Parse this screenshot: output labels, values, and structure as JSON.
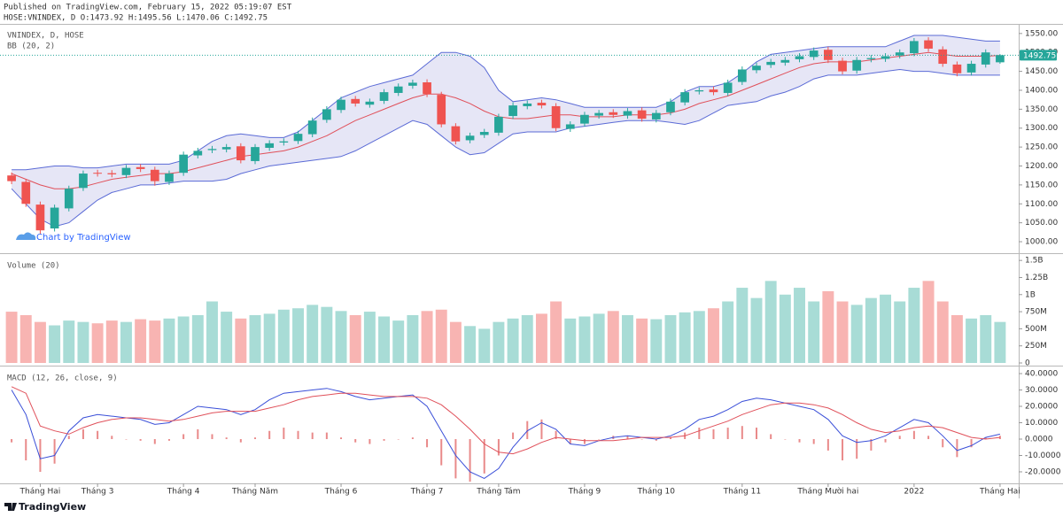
{
  "header": {
    "published": "Published on TradingView.com, February 15, 2022 05:19:07 EST",
    "ohlc": "HOSE:VNINDEX, D O:1473.92 H:1495.56 L:1470.06 C:1492.75"
  },
  "watermark": "Chart by TradingView",
  "footer": "TradingView",
  "chart_data": [
    {
      "type": "candlestick",
      "title": "VNINDEX, D, HOSE",
      "up_color": "#26a69a",
      "down_color": "#ef5350",
      "open": [
        1175,
        1158,
        1098,
        1035,
        1088,
        1142,
        1182,
        1181,
        1176,
        1197,
        1190,
        1158,
        1182,
        1228,
        1242,
        1244,
        1252,
        1213,
        1248,
        1262,
        1266,
        1284,
        1322,
        1348,
        1377,
        1362,
        1372,
        1393,
        1412,
        1421,
        1388,
        1305,
        1268,
        1282,
        1288,
        1332,
        1358,
        1367,
        1358,
        1298,
        1312,
        1333,
        1342,
        1333,
        1347,
        1323,
        1342,
        1368,
        1397,
        1402,
        1393,
        1422,
        1453,
        1467,
        1473,
        1482,
        1488,
        1507,
        1478,
        1452,
        1482,
        1483,
        1492,
        1498,
        1532,
        1508,
        1468,
        1447,
        1468,
        1473.92
      ],
      "high": [
        1183,
        1166,
        1106,
        1098,
        1148,
        1188,
        1190,
        1189,
        1203,
        1205,
        1198,
        1188,
        1238,
        1248,
        1253,
        1258,
        1260,
        1258,
        1268,
        1273,
        1293,
        1328,
        1358,
        1383,
        1385,
        1378,
        1403,
        1418,
        1428,
        1429,
        1396,
        1313,
        1288,
        1298,
        1338,
        1368,
        1373,
        1375,
        1366,
        1318,
        1343,
        1348,
        1350,
        1353,
        1355,
        1348,
        1378,
        1403,
        1408,
        1410,
        1428,
        1463,
        1473,
        1483,
        1488,
        1498,
        1513,
        1515,
        1486,
        1488,
        1493,
        1498,
        1508,
        1538,
        1540,
        1516,
        1476,
        1478,
        1508,
        1495.56
      ],
      "low": [
        1152,
        1092,
        1020,
        1027,
        1080,
        1134,
        1172,
        1170,
        1168,
        1184,
        1148,
        1150,
        1174,
        1220,
        1234,
        1236,
        1207,
        1205,
        1240,
        1254,
        1258,
        1276,
        1314,
        1340,
        1357,
        1354,
        1364,
        1385,
        1404,
        1382,
        1302,
        1257,
        1260,
        1274,
        1280,
        1324,
        1350,
        1352,
        1292,
        1290,
        1304,
        1325,
        1327,
        1325,
        1317,
        1315,
        1334,
        1360,
        1389,
        1387,
        1385,
        1414,
        1445,
        1459,
        1465,
        1474,
        1480,
        1472,
        1442,
        1444,
        1474,
        1475,
        1484,
        1490,
        1502,
        1462,
        1437,
        1439,
        1460,
        1470.06
      ],
      "close": [
        1160,
        1100,
        1030,
        1090,
        1140,
        1180,
        1180,
        1178,
        1195,
        1192,
        1160,
        1180,
        1230,
        1240,
        1245,
        1250,
        1215,
        1250,
        1260,
        1265,
        1285,
        1320,
        1350,
        1375,
        1365,
        1370,
        1395,
        1410,
        1420,
        1390,
        1310,
        1265,
        1280,
        1290,
        1330,
        1360,
        1365,
        1360,
        1300,
        1310,
        1335,
        1340,
        1335,
        1345,
        1325,
        1340,
        1370,
        1395,
        1400,
        1395,
        1420,
        1455,
        1465,
        1475,
        1480,
        1490,
        1505,
        1480,
        1450,
        1480,
        1485,
        1490,
        1500,
        1530,
        1510,
        1470,
        1445,
        1470,
        1500,
        1492.75
      ],
      "bands": {
        "name": "BB (20, 2)",
        "line_color": "#5b6bd6",
        "basis_color": "#e0505a",
        "fill": "#dcdcf2",
        "upper": [
          1190,
          1190,
          1195,
          1200,
          1200,
          1195,
          1195,
          1200,
          1205,
          1205,
          1205,
          1205,
          1215,
          1240,
          1265,
          1280,
          1285,
          1280,
          1275,
          1275,
          1290,
          1320,
          1350,
          1380,
          1395,
          1410,
          1420,
          1430,
          1440,
          1470,
          1500,
          1500,
          1490,
          1460,
          1400,
          1370,
          1375,
          1380,
          1375,
          1365,
          1355,
          1355,
          1355,
          1355,
          1355,
          1355,
          1370,
          1395,
          1410,
          1410,
          1420,
          1445,
          1475,
          1495,
          1500,
          1505,
          1510,
          1515,
          1515,
          1515,
          1515,
          1515,
          1530,
          1545,
          1545,
          1545,
          1540,
          1535,
          1530,
          1530
        ],
        "basis": [
          1180,
          1165,
          1150,
          1140,
          1140,
          1145,
          1155,
          1165,
          1170,
          1175,
          1180,
          1180,
          1185,
          1195,
          1205,
          1215,
          1225,
          1230,
          1235,
          1240,
          1250,
          1265,
          1280,
          1300,
          1320,
          1335,
          1350,
          1365,
          1380,
          1390,
          1390,
          1380,
          1365,
          1345,
          1330,
          1325,
          1325,
          1330,
          1335,
          1335,
          1330,
          1330,
          1330,
          1335,
          1335,
          1335,
          1340,
          1350,
          1365,
          1375,
          1385,
          1400,
          1415,
          1430,
          1445,
          1460,
          1470,
          1475,
          1475,
          1475,
          1480,
          1485,
          1490,
          1495,
          1500,
          1495,
          1490,
          1490,
          1490,
          1492
        ],
        "lower": [
          1140,
          1100,
          1060,
          1040,
          1050,
          1080,
          1110,
          1130,
          1140,
          1150,
          1150,
          1155,
          1160,
          1160,
          1160,
          1165,
          1180,
          1190,
          1200,
          1205,
          1210,
          1215,
          1220,
          1225,
          1240,
          1260,
          1280,
          1300,
          1320,
          1310,
          1280,
          1250,
          1230,
          1235,
          1260,
          1285,
          1290,
          1290,
          1290,
          1300,
          1305,
          1310,
          1315,
          1320,
          1320,
          1320,
          1315,
          1310,
          1320,
          1340,
          1360,
          1365,
          1370,
          1385,
          1395,
          1410,
          1430,
          1440,
          1440,
          1440,
          1445,
          1450,
          1455,
          1450,
          1450,
          1445,
          1440,
          1440,
          1440,
          1440
        ]
      },
      "last_price": 1492.75,
      "last_price_color": "#26a69a",
      "ylim": [
        972,
        1573
      ],
      "yticks": [
        {
          "value": 1550,
          "label": "1550.00"
        },
        {
          "value": 1500,
          "label": "1500.00"
        },
        {
          "value": 1450,
          "label": "1450.00"
        },
        {
          "value": 1400,
          "label": "1400.00"
        },
        {
          "value": 1350,
          "label": "1350.00"
        },
        {
          "value": 1300,
          "label": "1300.00"
        },
        {
          "value": 1250,
          "label": "1250.00"
        },
        {
          "value": 1200,
          "label": "1200.00"
        },
        {
          "value": 1150,
          "label": "1150.00"
        },
        {
          "value": 1100,
          "label": "1100.00"
        },
        {
          "value": 1050,
          "label": "1050.00"
        },
        {
          "value": 1000,
          "label": "1000.00"
        }
      ]
    },
    {
      "type": "bar",
      "title": "Volume (20)",
      "up_color": "#a8dcd6",
      "down_color": "#f8b4b2",
      "values": [
        750,
        700,
        600,
        550,
        620,
        600,
        580,
        620,
        600,
        640,
        620,
        650,
        680,
        700,
        900,
        750,
        650,
        700,
        720,
        780,
        800,
        850,
        820,
        760,
        700,
        750,
        680,
        620,
        700,
        760,
        780,
        600,
        540,
        500,
        600,
        650,
        700,
        720,
        900,
        650,
        680,
        720,
        760,
        700,
        650,
        640,
        700,
        740,
        760,
        800,
        900,
        1100,
        950,
        1200,
        1000,
        1100,
        900,
        1050,
        900,
        850,
        950,
        1000,
        900,
        1100,
        1200,
        900,
        700,
        650,
        700,
        600
      ],
      "ylim": [
        -26,
        1580
      ],
      "yticks": [
        {
          "value": 1500,
          "label": "1.5B"
        },
        {
          "value": 1250,
          "label": "1.25B"
        },
        {
          "value": 1000,
          "label": "1B"
        },
        {
          "value": 750,
          "label": "750M"
        },
        {
          "value": 500,
          "label": "500M"
        },
        {
          "value": 250,
          "label": "250M"
        },
        0
      ]
    },
    {
      "type": "macd",
      "title": "MACD (12, 26, close, 9)",
      "macd_color": "#3a4fd8",
      "signal_color": "#e0505a",
      "histogram_color": "#e98a8a",
      "categories": [
        null,
        null,
        "Tháng Hai",
        null,
        null,
        null,
        "Tháng 3",
        null,
        null,
        null,
        null,
        null,
        "Tháng 4",
        null,
        null,
        null,
        null,
        "Tháng Năm",
        null,
        null,
        null,
        null,
        null,
        "Tháng 6",
        null,
        null,
        null,
        null,
        null,
        "Tháng 7",
        null,
        null,
        null,
        null,
        "Tháng Tám",
        null,
        null,
        null,
        null,
        null,
        "Tháng 9",
        null,
        null,
        null,
        null,
        "Tháng 10",
        null,
        null,
        null,
        null,
        null,
        "Tháng 11",
        null,
        null,
        null,
        null,
        null,
        "Tháng Mười hai",
        null,
        null,
        null,
        null,
        null,
        "2022",
        null,
        null,
        null,
        null,
        null,
        "Tháng Hai"
      ],
      "macd": [
        30,
        15,
        -12,
        -10,
        5,
        13,
        15,
        14,
        13,
        12,
        9,
        10,
        15,
        20,
        19,
        18,
        15,
        18,
        24,
        28,
        29,
        30,
        31,
        29,
        26,
        24,
        25,
        26,
        27,
        20,
        5,
        -10,
        -20,
        -24,
        -18,
        -5,
        5,
        10,
        6,
        -3,
        -4,
        -1,
        1,
        2,
        1,
        0,
        2,
        6,
        12,
        14,
        18,
        23,
        25,
        24,
        22,
        20,
        18,
        12,
        2,
        -2,
        -1,
        2,
        7,
        12,
        10,
        2,
        -7,
        -4,
        1,
        3
      ],
      "signal": [
        32,
        28,
        8,
        5,
        3,
        7,
        10,
        12,
        13,
        13,
        12,
        11,
        12,
        14,
        16,
        17,
        17,
        17,
        19,
        21,
        24,
        26,
        27,
        28,
        28,
        27,
        26,
        26,
        26,
        25,
        21,
        14,
        6,
        -3,
        -8,
        -9,
        -6,
        -2,
        1,
        0,
        -1,
        -1,
        -1,
        0,
        1,
        1,
        1,
        2,
        5,
        8,
        11,
        15,
        18,
        21,
        22,
        22,
        21,
        19,
        15,
        10,
        6,
        4,
        5,
        7,
        8,
        7,
        4,
        1,
        0,
        1
      ],
      "histogram": [
        -2,
        -13,
        -20,
        -15,
        2,
        6,
        5,
        2,
        0,
        -1,
        -3,
        -1,
        3,
        6,
        3,
        1,
        -2,
        1,
        5,
        7,
        5,
        4,
        4,
        1,
        -2,
        -3,
        -1,
        0,
        1,
        -5,
        -16,
        -24,
        -26,
        -21,
        -10,
        4,
        11,
        12,
        5,
        -3,
        -3,
        0,
        2,
        2,
        0,
        -1,
        1,
        4,
        7,
        6,
        7,
        8,
        7,
        3,
        0,
        -2,
        -3,
        -7,
        -13,
        -12,
        -7,
        -2,
        2,
        5,
        2,
        -5,
        -11,
        -5,
        1,
        2
      ],
      "ylim": [
        -26.5,
        43.8
      ],
      "yticks": [
        {
          "value": 40,
          "label": "40.0000"
        },
        {
          "value": 30,
          "label": "30.0000"
        },
        {
          "value": 20,
          "label": "20.0000"
        },
        {
          "value": 10,
          "label": "10.0000"
        },
        {
          "value": 0,
          "label": "0.0000"
        },
        {
          "value": -10,
          "label": "-10.0000"
        },
        {
          "value": -20,
          "label": "-20.0000"
        }
      ]
    }
  ]
}
